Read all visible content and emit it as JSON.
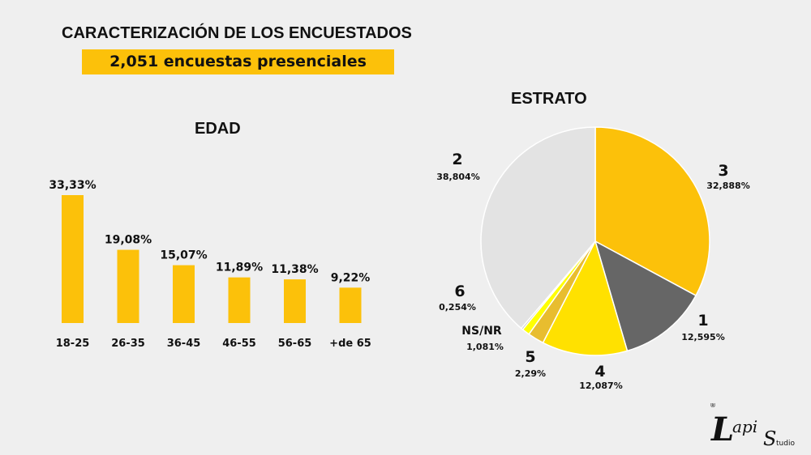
{
  "header": {
    "title": "CARACTERIZACIÓN DE LOS ENCUESTADOS",
    "subtitle": "2,051 encuestas presenciales"
  },
  "colors": {
    "accent": "#fcc10a",
    "background": "#efefef"
  },
  "chart_data": [
    {
      "type": "bar",
      "title": "EDAD",
      "categories": [
        "18-25",
        "26-35",
        "36-45",
        "46-55",
        "56-65",
        "+de 65"
      ],
      "values": [
        33.33,
        19.08,
        15.07,
        11.89,
        11.38,
        9.22
      ],
      "value_labels": [
        "33,33%",
        "19,08%",
        "15,07%",
        "11,89%",
        "11,38%",
        "9,22%"
      ],
      "ylim": [
        0,
        33.33
      ],
      "bar_color": "#fcc10a",
      "grid": false
    },
    {
      "type": "pie",
      "title": "ESTRATO",
      "slices": [
        {
          "label": "3",
          "value": 32.888,
          "pct_label": "32,888%",
          "color": "#fcc10a"
        },
        {
          "label": "1",
          "value": 12.595,
          "pct_label": "12,595%",
          "color": "#666666"
        },
        {
          "label": "4",
          "value": 12.087,
          "pct_label": "12,087%",
          "color": "#ffe100"
        },
        {
          "label": "5",
          "value": 2.29,
          "pct_label": "2,29%",
          "color": "#e8bd2f"
        },
        {
          "label": "NS/NR",
          "value": 1.081,
          "pct_label": "1,081%",
          "color": "#ffff00"
        },
        {
          "label": "6",
          "value": 0.254,
          "pct_label": "0,254%",
          "color": "#b2b2b2"
        },
        {
          "label": "2",
          "value": 38.804,
          "pct_label": "38,804%",
          "color": "#e3e3e3"
        }
      ]
    }
  ],
  "logo": {
    "text_main": "Lapi",
    "text_sub": "Studio",
    "mark": "®"
  }
}
